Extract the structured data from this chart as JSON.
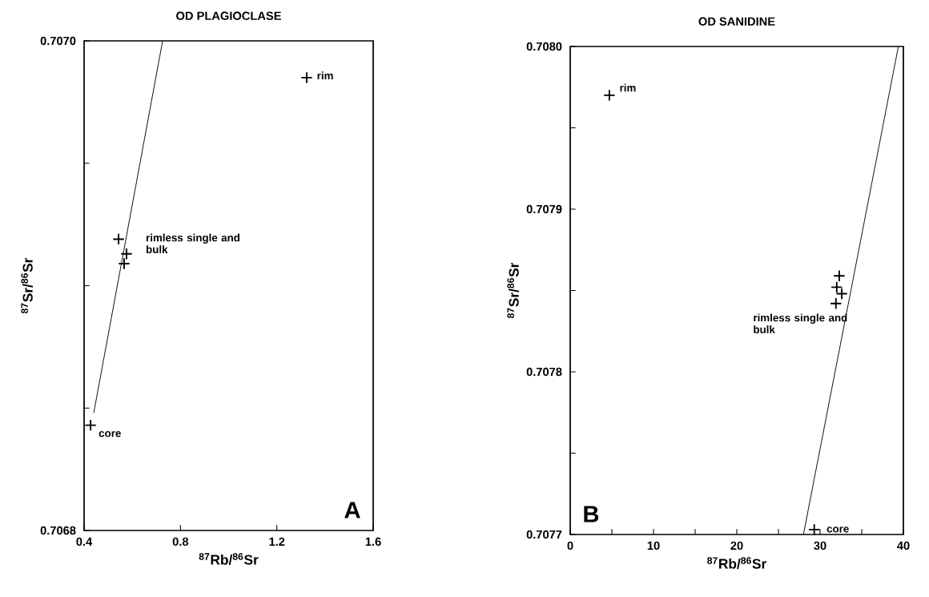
{
  "chart_data": [
    {
      "type": "scatter",
      "title": "OD  PLAGIOCLASE",
      "xlabel": "$^{87}$Rb/$^{86}$Sr",
      "ylabel": "$^{87}$Sr/$^{86}$Sr",
      "xlim": [
        0.4,
        1.6
      ],
      "ylim": [
        0.7068,
        0.707
      ],
      "xticks": [
        0.4,
        0.8,
        1.2,
        1.6
      ],
      "yticks": [
        {
          "value": 0.7068,
          "label": "0.7068"
        },
        {
          "value": 0.70685,
          "label": null
        },
        {
          "value": 0.7069,
          "label": null
        },
        {
          "value": 0.70695,
          "label": null
        },
        {
          "value": 0.707,
          "label": "0.7070"
        }
      ],
      "series": [
        {
          "color": "#000000",
          "marker": "cross",
          "x": [
            1.324,
            0.543,
            0.576,
            0.566,
            0.427
          ],
          "values": [
            0.706985,
            0.706919,
            0.706913,
            0.706909,
            0.706843
          ]
        },
        {
          "type": "line",
          "color": "#000000",
          "line_style": "solid",
          "x": [
            0.44,
            0.726
          ],
          "values": [
            0.706848,
            0.707
          ]
        }
      ],
      "annotations": [
        {
          "text": "rim",
          "x": 1.324,
          "y": 0.706985
        },
        {
          "text": "rimless single and bulk",
          "x": 0.543,
          "y": 0.706919
        },
        {
          "text": "core",
          "x": 0.427,
          "y": 0.706843
        },
        "A"
      ]
    },
    {
      "type": "scatter",
      "title": "OD  SANIDINE",
      "xlabel": "$^{87}$Rb/$^{86}$Sr",
      "ylabel": "$^{87}$Sr/$^{86}$Sr",
      "xlim": [
        0,
        40
      ],
      "ylim": [
        0.7077,
        0.708
      ],
      "xticks": [
        0,
        {
          "value": 5,
          "label": null
        },
        10,
        {
          "value": 15,
          "label": null
        },
        20,
        {
          "value": 25,
          "label": null
        },
        30,
        {
          "value": 35,
          "label": null
        },
        40
      ],
      "yticks": [
        {
          "value": 0.7077,
          "label": "0.7077"
        },
        {
          "value": 0.70775,
          "label": null
        },
        {
          "value": 0.7078,
          "label": "0.7078"
        },
        {
          "value": 0.70785,
          "label": null
        },
        {
          "value": 0.7079,
          "label": "0.7079"
        },
        {
          "value": 0.70795,
          "label": null
        },
        {
          "value": 0.708,
          "label": "0.7080"
        }
      ],
      "series": [
        {
          "color": "#000000",
          "marker": "cross",
          "x": [
            4.7,
            32.3,
            32.0,
            32.6,
            31.9,
            29.3
          ],
          "values": [
            0.70797,
            0.707859,
            0.707852,
            0.707848,
            0.707842,
            0.707703
          ]
        },
        {
          "type": "line",
          "color": "#000000",
          "line_style": "solid",
          "x": [
            28.0,
            39.4
          ],
          "values": [
            0.7077,
            0.708
          ]
        }
      ],
      "annotations": [
        {
          "text": "rim",
          "x": 4.7,
          "y": 0.70797
        },
        {
          "text": "rimless single and bulk",
          "x": 31.9,
          "y": 0.707842
        },
        {
          "text": "core",
          "x": 29.3,
          "y": 0.707703
        },
        "B"
      ]
    }
  ]
}
